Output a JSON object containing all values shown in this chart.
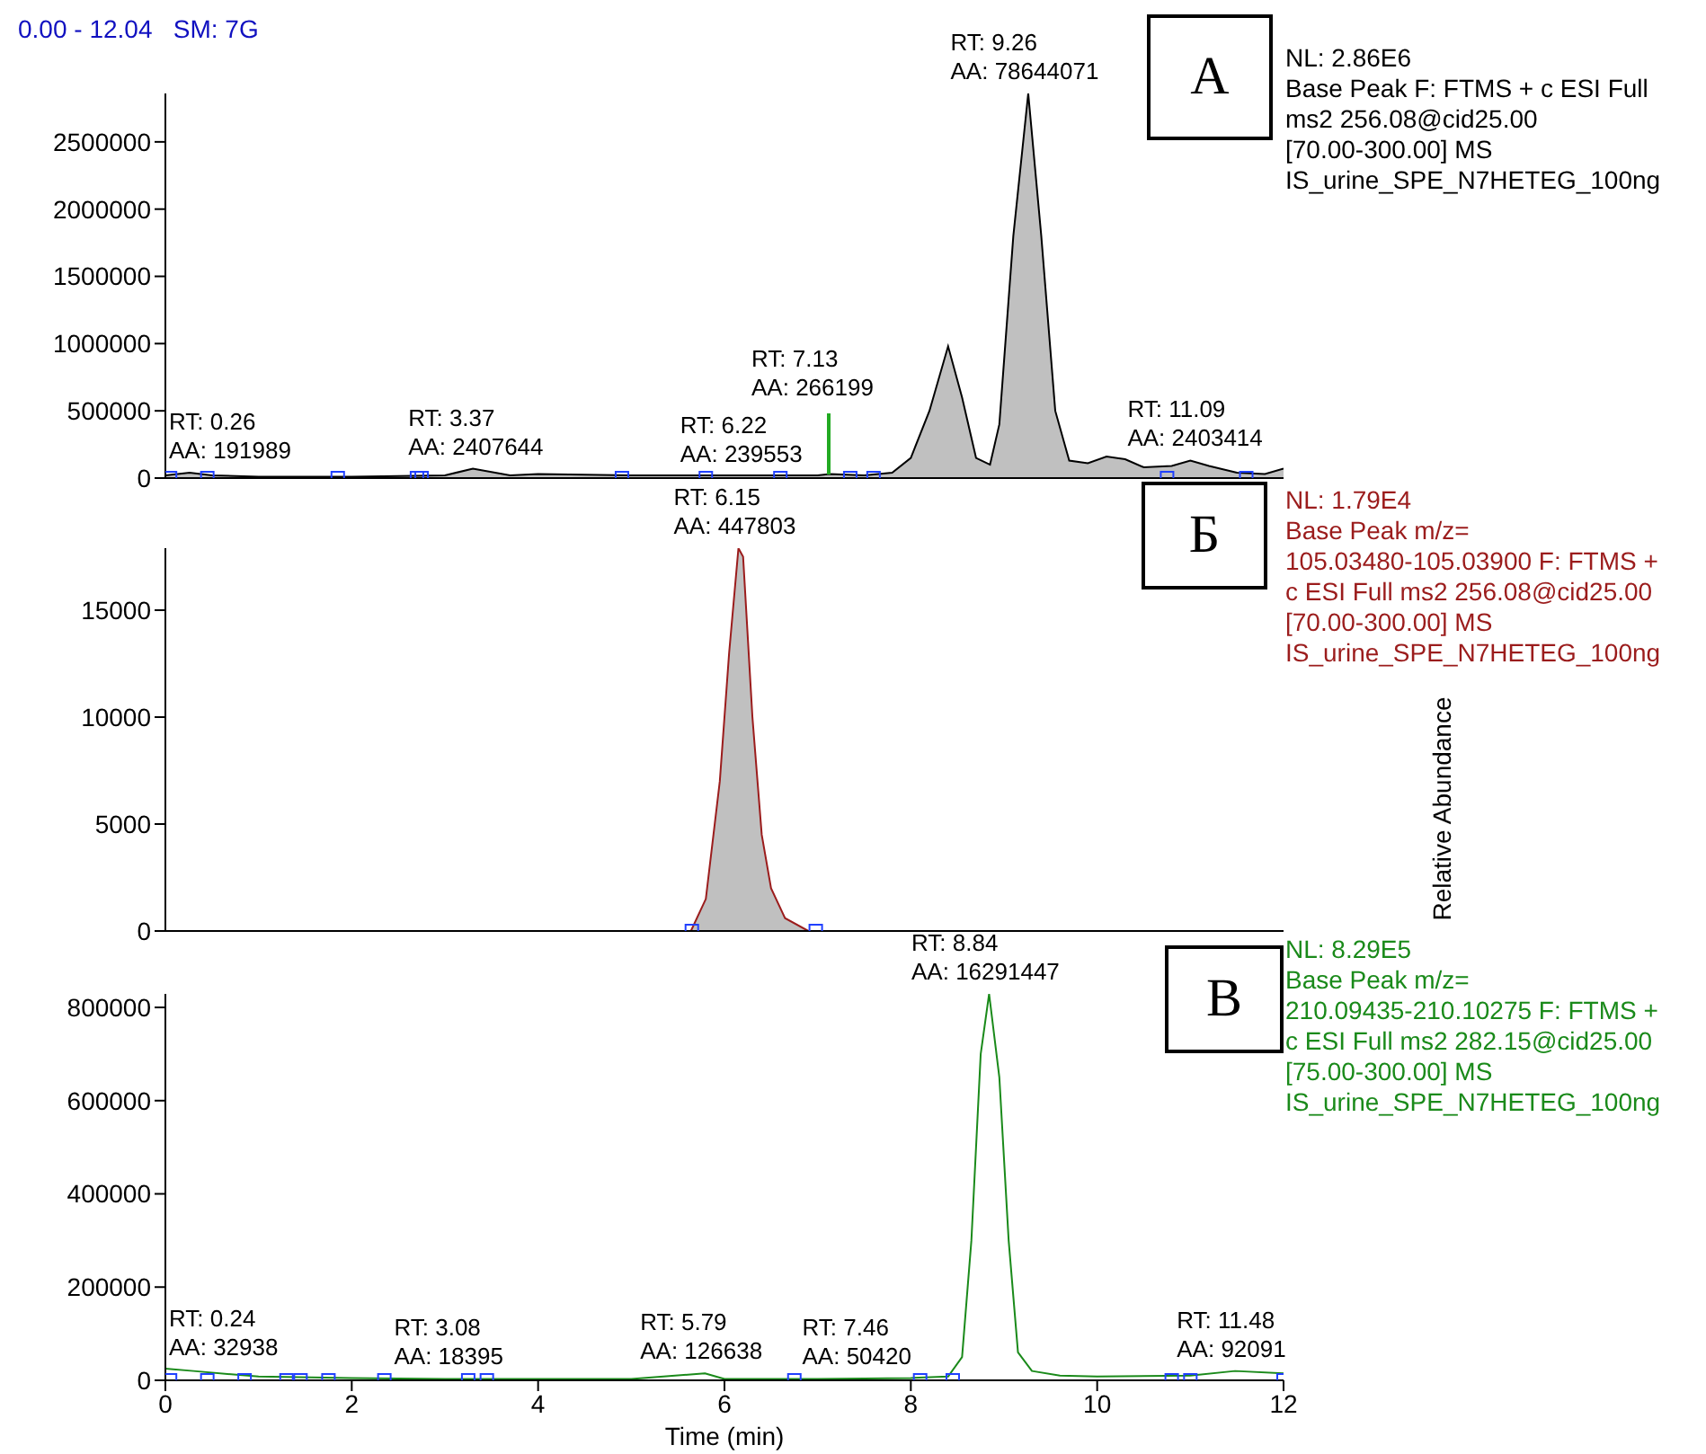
{
  "chart_data": [
    {
      "type": "area",
      "xlim": [
        0,
        12
      ],
      "ylim": [
        0,
        2860000
      ],
      "yticks": [
        0,
        500000,
        1000000,
        1500000,
        2000000,
        2500000
      ],
      "tick_labels": "y",
      "annotations": [
        "А",
        "NL: 2.86E6\nBase Peak F: FTMS + c ESI Full\nms2 256.08@cid25.00\n[70.00-300.00]  MS\nIS_urine_SPE_N7HETEG_100ng",
        "0.00 - 12.04   SM: 7G",
        {
          "text": "RT: 0.26\nAA: 191989",
          "x": 0.26,
          "y": 40000
        },
        {
          "text": "RT: 3.37\nAA: 2407644",
          "x": 3.37,
          "y": 73000
        },
        {
          "text": "RT: 6.22\nAA: 239553",
          "x": 6.22,
          "y": 15000
        },
        "RT: 7.13\nAA: 266199",
        {
          "text": "RT: 9.26\nAA: 78644071",
          "x": 9.26,
          "y": 2860000
        },
        {
          "text": "RT: 11.09\nAA: 2403414",
          "x": 11.09,
          "y": 130000
        }
      ],
      "series": [
        {
          "color": "#000000",
          "marker": "none",
          "x": [
            0,
            0.26,
            0.5,
            1,
            2,
            3,
            3.3,
            3.7,
            4,
            5,
            6,
            6.5,
            7,
            7.13,
            7.5,
            7.8,
            8.0,
            8.2,
            8.4,
            8.55,
            8.7,
            8.85,
            8.95,
            9.1,
            9.26,
            9.4,
            9.55,
            9.7,
            9.9,
            10.1,
            10.3,
            10.5,
            10.8,
            11.0,
            11.2,
            11.5,
            11.8,
            12
          ],
          "values": [
            20000,
            40000,
            20000,
            10000,
            10000,
            20000,
            70000,
            20000,
            30000,
            20000,
            20000,
            20000,
            20000,
            30000,
            20000,
            40000,
            150000,
            500000,
            980000,
            600000,
            150000,
            100000,
            400000,
            1800000,
            2860000,
            1800000,
            500000,
            130000,
            110000,
            160000,
            140000,
            80000,
            90000,
            130000,
            90000,
            40000,
            30000,
            70000
          ]
        },
        {
          "type": "scatter",
          "color": "#2040ff",
          "marker": "square",
          "x": [
            0.05,
            0.45,
            1.85,
            2.7,
            2.75,
            4.9,
            5.8,
            6.6,
            7.35,
            7.6,
            10.75,
            11.6
          ],
          "values": [
            0,
            0,
            0,
            0,
            0,
            0,
            0,
            0,
            0,
            0,
            0,
            0
          ]
        }
      ]
    },
    {
      "type": "area",
      "xlim": [
        0,
        12
      ],
      "ylim": [
        0,
        17900
      ],
      "yticks": [
        0,
        5000,
        10000,
        15000
      ],
      "tick_labels": "y",
      "ylabel": "Relative Abundance",
      "annotations": [
        "Б",
        "NL: 1.79E4\nBase Peak m/z=\n105.03480-105.03900 F: FTMS +\nc ESI Full ms2 256.08@cid25.00\n[70.00-300.00]  MS\nIS_urine_SPE_N7HETEG_100ng",
        {
          "text": "RT: 6.15\nAA: 447803",
          "x": 6.15,
          "y": 17900
        }
      ],
      "series": [
        {
          "color": "#9b1c1c",
          "marker": "none",
          "x": [
            0,
            5.64,
            5.8,
            5.95,
            6.05,
            6.15,
            6.2,
            6.3,
            6.4,
            6.5,
            6.65,
            6.9,
            7.0,
            12
          ],
          "values": [
            0,
            0,
            1500,
            7000,
            13000,
            17900,
            17500,
            10000,
            4500,
            2000,
            600,
            0,
            0,
            0
          ]
        },
        {
          "type": "scatter",
          "color": "#2040ff",
          "marker": "square",
          "x": [
            5.65,
            6.98
          ],
          "values": [
            0,
            0
          ]
        }
      ]
    },
    {
      "type": "line",
      "xlim": [
        0,
        12
      ],
      "ylim": [
        0,
        829000
      ],
      "xticks": [
        0,
        2,
        4,
        6,
        8,
        10,
        12
      ],
      "yticks": [
        0,
        200000,
        400000,
        600000,
        800000
      ],
      "xlabel": "Time (min)",
      "annotations": [
        "В",
        "NL: 8.29E5\nBase Peak m/z=\n210.09435-210.10275 F: FTMS +\nc ESI Full ms2 282.15@cid25.00\n[75.00-300.00]  MS\nIS_urine_SPE_N7HETEG_100ng",
        {
          "text": "RT: 0.24\nAA: 32938",
          "x": 0.24,
          "y": 22000
        },
        {
          "text": "RT: 3.08\nAA: 18395",
          "x": 3.08,
          "y": 3000
        },
        {
          "text": "RT: 5.79\nAA: 126638",
          "x": 5.79,
          "y": 15000
        },
        {
          "text": "RT: 7.46\nAA: 50420",
          "x": 7.46,
          "y": 3000
        },
        {
          "text": "RT: 8.84\nAA: 16291447",
          "x": 8.84,
          "y": 829000
        },
        {
          "text": "RT: 11.48\nAA: 92091",
          "x": 11.48,
          "y": 20000
        }
      ],
      "series": [
        {
          "color": "#1a8a1a",
          "marker": "none",
          "x": [
            0,
            0.3,
            1,
            2,
            3,
            5,
            5.79,
            6,
            7,
            8,
            8.4,
            8.55,
            8.65,
            8.75,
            8.84,
            8.95,
            9.05,
            9.15,
            9.3,
            9.6,
            10,
            11,
            11.48,
            12
          ],
          "values": [
            25000,
            20000,
            8000,
            5000,
            3000,
            3000,
            15000,
            3000,
            3000,
            5000,
            8000,
            50000,
            300000,
            700000,
            829000,
            650000,
            300000,
            60000,
            20000,
            10000,
            8000,
            10000,
            20000,
            15000
          ]
        },
        {
          "type": "scatter",
          "color": "#2040ff",
          "marker": "square",
          "x": [
            0.05,
            0.45,
            0.85,
            1.3,
            1.45,
            1.75,
            2.35,
            3.25,
            3.45,
            6.75,
            8.1,
            8.45,
            10.8,
            11.0,
            12.0
          ],
          "values": [
            0,
            0,
            0,
            0,
            0,
            0,
            0,
            0,
            0,
            0,
            0,
            0,
            0,
            0,
            0
          ]
        }
      ]
    }
  ]
}
